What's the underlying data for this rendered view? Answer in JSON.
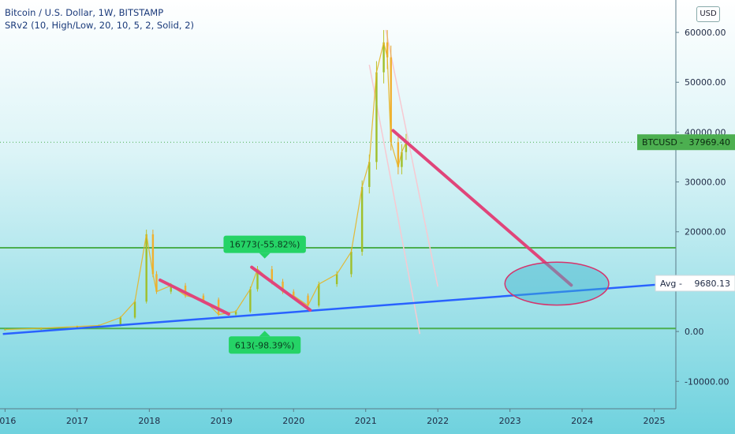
{
  "header": {
    "symbol_line": "Bitcoin / U.S. Dollar, 1W, BITSTAMP",
    "indicator_line": "SRv2 (10, High/Low, 20, 10, 5, 2, Solid, 2)",
    "currency_badge": "USD"
  },
  "chart_data": {
    "type": "line",
    "title": "Bitcoin / U.S. Dollar, 1W, BITSTAMP",
    "xlabel": "",
    "ylabel": "",
    "xlim": [
      2015.93,
      2025.3
    ],
    "ylim": [
      -15500,
      66500
    ],
    "grid": false,
    "y_ticks": [
      60000,
      50000,
      40000,
      30000,
      20000,
      10000,
      0,
      -10000
    ],
    "y_tick_labels": [
      "60000.00",
      "50000.00",
      "40000.00",
      "30000.00",
      "20000.00",
      "10000.00",
      "0.00",
      "-10000.00"
    ],
    "x_ticks": [
      2016,
      2017,
      2018,
      2019,
      2020,
      2021,
      2022,
      2023,
      2024,
      2025
    ],
    "x_tick_labels": [
      "2016",
      "2017",
      "2018",
      "2019",
      "2020",
      "2021",
      "2022",
      "2023",
      "2024",
      "2025"
    ],
    "series": [
      {
        "name": "BTCUSD",
        "color": "#e6b422",
        "x": [
          2016.0,
          2016.5,
          2017.0,
          2017.3,
          2017.6,
          2017.8,
          2017.96,
          2018.05,
          2018.1,
          2018.3,
          2018.5,
          2018.75,
          2018.96,
          2019.2,
          2019.4,
          2019.5,
          2019.7,
          2019.85,
          2020.0,
          2020.2,
          2020.35,
          2020.6,
          2020.8,
          2020.95,
          2021.05,
          2021.15,
          2021.25,
          2021.3,
          2021.35,
          2021.45,
          2021.5,
          2021.56
        ],
        "y": [
          400,
          650,
          1000,
          1200,
          2800,
          6000,
          19500,
          11500,
          8000,
          9200,
          7200,
          6400,
          3400,
          4000,
          8500,
          12500,
          10000,
          8000,
          7200,
          5200,
          9500,
          11500,
          16000,
          29000,
          34000,
          52000,
          58000,
          55000,
          38000,
          33000,
          36000,
          37969.4
        ]
      }
    ],
    "current_price": {
      "label": "BTCUSD",
      "value": "37969.40",
      "y": 37969.4,
      "color": "#4caf50"
    },
    "avg_line": {
      "label": "Avg",
      "value": "9680.13",
      "from": [
        2015.97,
        -500
      ],
      "to": [
        2025.3,
        9680.13
      ],
      "color": "#2962ff"
    },
    "support_resistance": [
      {
        "y": 16800,
        "color": "#4caf50"
      },
      {
        "y": 600,
        "color": "#4caf50"
      }
    ],
    "trend_segments": [
      {
        "from": [
          2018.15,
          10300
        ],
        "to": [
          2019.1,
          3500
        ],
        "color": "#e0457a"
      },
      {
        "from": [
          2019.42,
          12900
        ],
        "to": [
          2020.23,
          4300
        ],
        "color": "#e0457a"
      },
      {
        "from": [
          2021.38,
          40300
        ],
        "to": [
          2023.85,
          9300
        ],
        "color": "#e0457a"
      }
    ],
    "faint_lines": [
      {
        "from": [
          2021.05,
          53500
        ],
        "to": [
          2021.75,
          -500
        ],
        "color": "#f7c9d1"
      },
      {
        "from": [
          2021.28,
          60500
        ],
        "to": [
          2022.0,
          9000
        ],
        "color": "#f7c9d1"
      }
    ],
    "ellipse": {
      "center": [
        2023.65,
        9600
      ],
      "radius_x_years": 0.72,
      "radius_y_value": 4300,
      "color": "#d6336c"
    },
    "annotations": [
      {
        "text": "16773(-55.82%)",
        "x": 2019.6,
        "y": 12900,
        "pointer": "down"
      },
      {
        "text": "613(-98.39%)",
        "x": 2019.6,
        "y": 600,
        "pointer": "up"
      }
    ]
  }
}
